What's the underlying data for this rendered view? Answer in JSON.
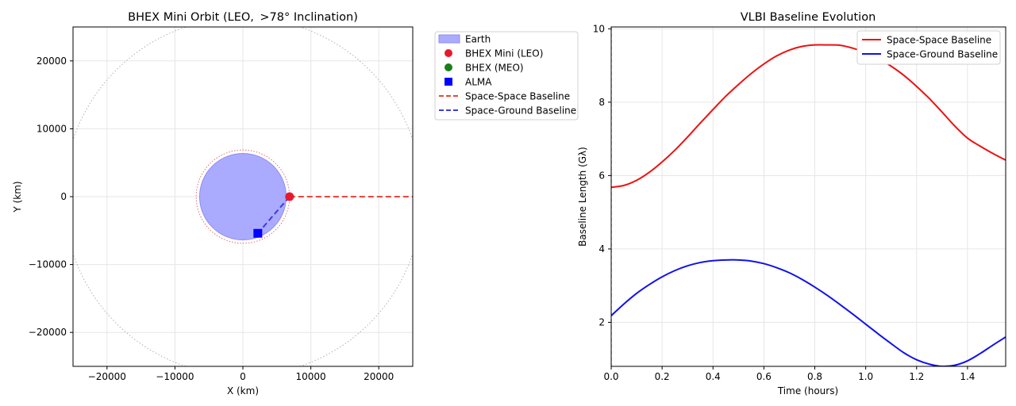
{
  "chart_data": [
    {
      "type": "scatter",
      "title": "BHEX Mini Orbit (LEO, $>78^{\\circ}$ Inclination)",
      "title_display": "BHEX Mini Orbit (LEO,  >78° Inclination)",
      "xlabel": "X (km)",
      "ylabel": "Y (km)",
      "xlim": [
        -25000,
        25000
      ],
      "ylim": [
        -25000,
        25000
      ],
      "xticks": [
        -20000,
        -10000,
        0,
        10000,
        20000
      ],
      "yticks": [
        -20000,
        -10000,
        0,
        10000,
        20000
      ],
      "xtick_labels": [
        "−20000",
        "−10000",
        "0",
        "10000",
        "20000"
      ],
      "ytick_labels": [
        "−20000",
        "−10000",
        "0",
        "10000",
        "20000"
      ],
      "grid": true,
      "legend_position": "outside-right",
      "earth": {
        "center": [
          0,
          0
        ],
        "radius": 6371,
        "color": "#aaaaff"
      },
      "leo_orbit_radius": 6871,
      "meo_orbit_radius": 26371,
      "points": [
        {
          "name": "BHEX Mini (LEO)",
          "x": 6871,
          "y": 0,
          "marker": "circle",
          "color": "#e8192c"
        },
        {
          "name": "ALMA",
          "x": 2200,
          "y": -5400,
          "marker": "square",
          "color": "#0000ff"
        }
      ],
      "baselines": [
        {
          "name": "Space-Space Baseline",
          "from": [
            6871,
            0
          ],
          "to": [
            26371,
            0
          ],
          "color": "#e8473c"
        },
        {
          "name": "Space-Ground Baseline",
          "from": [
            6871,
            0
          ],
          "to": [
            2200,
            -5400
          ],
          "color": "#3c3ce0"
        }
      ],
      "legend": [
        {
          "label": "Earth",
          "kind": "patch",
          "color": "#aaaaff"
        },
        {
          "label": "BHEX Mini (LEO)",
          "kind": "circle",
          "color": "#e8192c"
        },
        {
          "label": "BHEX (MEO)",
          "kind": "circle",
          "color": "#1a7f1a"
        },
        {
          "label": "ALMA",
          "kind": "square",
          "color": "#0000ff"
        },
        {
          "label": "Space-Space Baseline",
          "kind": "dash",
          "color": "#e8473c"
        },
        {
          "label": "Space-Ground Baseline",
          "kind": "dash",
          "color": "#3c3ce0"
        }
      ]
    },
    {
      "type": "line",
      "title": "VLBI Baseline Evolution",
      "xlabel": "Time (hours)",
      "ylabel": "Baseline Length (Gλ)",
      "xlim": [
        0,
        1.55
      ],
      "ylim": [
        0.8,
        10.05
      ],
      "xticks": [
        0.0,
        0.2,
        0.4,
        0.6,
        0.8,
        1.0,
        1.2,
        1.4
      ],
      "xtick_labels": [
        "0.0",
        "0.2",
        "0.4",
        "0.6",
        "0.8",
        "1.0",
        "1.2",
        "1.4"
      ],
      "yticks": [
        2,
        4,
        6,
        8,
        10
      ],
      "ytick_labels": [
        "2",
        "4",
        "6",
        "8",
        "10"
      ],
      "grid": true,
      "legend_position": "top-right",
      "x": [
        0.0,
        0.05,
        0.1,
        0.15,
        0.2,
        0.25,
        0.3,
        0.35,
        0.4,
        0.45,
        0.5,
        0.55,
        0.6,
        0.65,
        0.7,
        0.75,
        0.8,
        0.85,
        0.9,
        0.95,
        1.0,
        1.05,
        1.1,
        1.15,
        1.2,
        1.25,
        1.3,
        1.35,
        1.4,
        1.45,
        1.5,
        1.55
      ],
      "series": [
        {
          "name": "Space-Space Baseline",
          "color": "#ee1111",
          "values": [
            5.68,
            5.73,
            5.87,
            6.09,
            6.37,
            6.69,
            7.05,
            7.43,
            7.8,
            8.16,
            8.48,
            8.78,
            9.04,
            9.26,
            9.42,
            9.52,
            9.56,
            9.56,
            9.55,
            9.47,
            9.35,
            9.19,
            8.98,
            8.73,
            8.43,
            8.1,
            7.73,
            7.35,
            7.02,
            6.8,
            6.6,
            6.42
          ]
        },
        {
          "name": "Space-Ground Baseline",
          "color": "#1111ee",
          "values": [
            2.18,
            2.5,
            2.79,
            3.03,
            3.24,
            3.41,
            3.54,
            3.63,
            3.68,
            3.7,
            3.7,
            3.67,
            3.6,
            3.49,
            3.35,
            3.17,
            2.96,
            2.73,
            2.48,
            2.22,
            1.95,
            1.68,
            1.42,
            1.17,
            0.98,
            0.86,
            0.8,
            0.83,
            0.95,
            1.15,
            1.38,
            1.6
          ]
        }
      ]
    }
  ]
}
